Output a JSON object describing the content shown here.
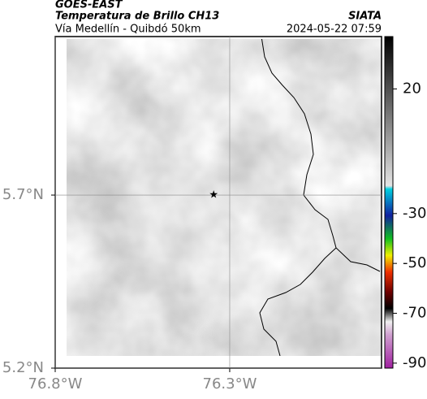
{
  "header": {
    "title": "GOES-EAST",
    "subtitle": "Temperatura de Brillo CH13",
    "route": "Vía Medellín - Quibdó 50km",
    "source": "SIATA",
    "timestamp": "2024-05-22 07:59"
  },
  "map": {
    "xlim": [
      -76.8,
      -75.865
    ],
    "ylim": [
      5.2,
      6.158
    ],
    "xticks": [
      {
        "value": -76.8,
        "label": "76.8°W"
      },
      {
        "value": -76.3,
        "label": "76.3°W"
      }
    ],
    "yticks": [
      {
        "value": 5.2,
        "label": "5.2°N"
      },
      {
        "value": 5.7,
        "label": "5.7°N"
      }
    ],
    "marker": {
      "lon": -76.346,
      "lat": 5.7
    }
  },
  "colorbar": {
    "lim": [
      -92,
      41
    ],
    "ticks": [
      20,
      -30,
      -50,
      -70,
      -90
    ]
  }
}
